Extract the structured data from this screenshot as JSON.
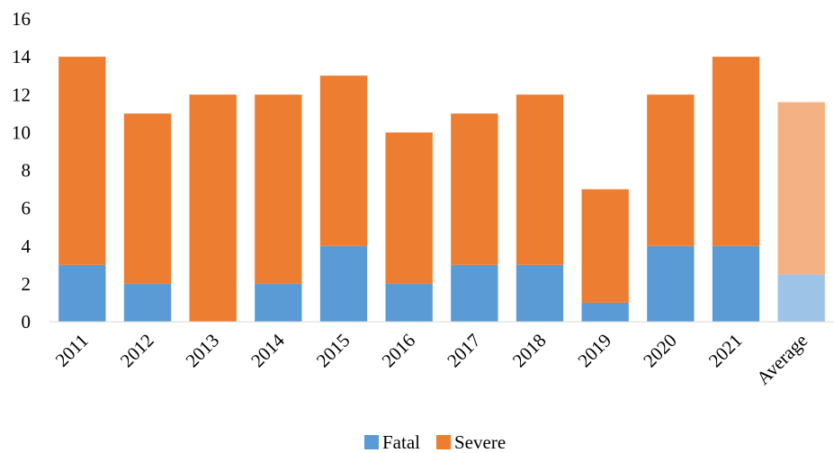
{
  "chart_data": {
    "type": "bar",
    "stacked": true,
    "categories": [
      "2011",
      "2012",
      "2013",
      "2014",
      "2015",
      "2016",
      "2017",
      "2018",
      "2019",
      "2020",
      "2021",
      "Average"
    ],
    "series": [
      {
        "name": "Fatal",
        "color": "#5b9bd5",
        "values": [
          3,
          2,
          0,
          2,
          4,
          2,
          3,
          3,
          1,
          4,
          4,
          2.5
        ]
      },
      {
        "name": "Severe",
        "color": "#ed7d31",
        "values": [
          11,
          9,
          12,
          10,
          9,
          8,
          8,
          9,
          6,
          8,
          10,
          9.1
        ]
      }
    ],
    "highlight_last_category_light": true,
    "light_colors": {
      "Fatal": "#9dc3e6",
      "Severe": "#f4b183"
    },
    "title": "",
    "xlabel": "",
    "ylabel": "",
    "ylim": [
      0,
      16
    ],
    "yticks": [
      0,
      2,
      4,
      6,
      8,
      10,
      12,
      14,
      16
    ],
    "grid": false,
    "legend_position": "bottom"
  }
}
